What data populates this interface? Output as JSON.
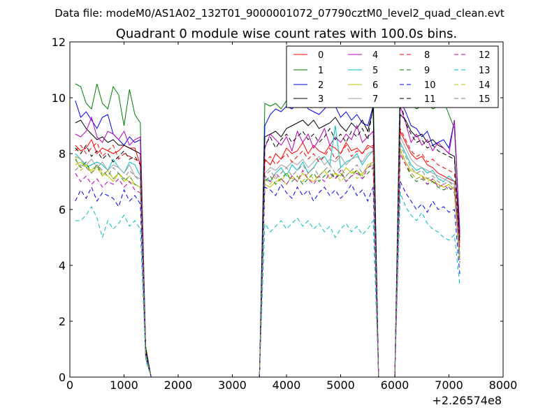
{
  "suptitle": "Data file: modeM0/AS1A02_132T01_9000001072_07790cztM0_level2_quad_clean.evt",
  "chart_data": {
    "type": "line",
    "title": "Quadrant 0 module wise count rates with 100.0s bins.",
    "xlabel": "",
    "ylabel": "",
    "x_offset_label": "+2.26574e8",
    "xlim": [
      0,
      8000
    ],
    "ylim": [
      0,
      12
    ],
    "xticks": [
      0,
      1000,
      2000,
      3000,
      4000,
      5000,
      6000,
      7000,
      8000
    ],
    "yticks": [
      0,
      2,
      4,
      6,
      8,
      10,
      12
    ],
    "legend_position": "top-right",
    "legend_columns": 4,
    "x": [
      100,
      200,
      300,
      400,
      500,
      600,
      700,
      800,
      900,
      1000,
      1100,
      1200,
      1300,
      1400,
      1500,
      1600,
      1700,
      1800,
      1900,
      2000,
      2100,
      2200,
      2300,
      2400,
      2500,
      2600,
      2700,
      2800,
      2900,
      3000,
      3100,
      3200,
      3300,
      3400,
      3500,
      3600,
      3700,
      3800,
      3900,
      4000,
      4100,
      4200,
      4300,
      4400,
      4500,
      4600,
      4700,
      4800,
      4900,
      5000,
      5100,
      5200,
      5300,
      5400,
      5500,
      5600,
      5700,
      5800,
      5900,
      6000,
      6100,
      6200,
      6300,
      6400,
      6500,
      6600,
      6700,
      6800,
      6900,
      7000,
      7100,
      7200
    ],
    "series": [
      {
        "name": "0",
        "color": "#ff0000",
        "dash": "solid",
        "values": [
          8.3,
          8.1,
          8.2,
          8.5,
          8.0,
          8.2,
          8.1,
          8.0,
          8.1,
          8.3,
          8.2,
          8.2,
          7.6,
          1.0,
          0,
          0,
          0,
          0,
          0,
          0,
          0,
          0,
          0,
          0,
          0,
          0,
          0,
          0,
          0,
          0,
          0,
          0,
          0,
          0,
          0,
          7.8,
          7.6,
          8.0,
          7.8,
          8.2,
          8.0,
          8.1,
          8.4,
          8.0,
          8.3,
          8.1,
          8.0,
          8.3,
          8.2,
          8.0,
          8.4,
          8.1,
          8.2,
          8.0,
          8.3,
          8.2,
          0,
          0,
          0,
          0,
          8.8,
          8.4,
          8.0,
          7.8,
          7.9,
          7.6,
          7.5,
          7.3,
          7.2,
          7.1,
          7.0,
          4.8
        ]
      },
      {
        "name": "1",
        "color": "#008000",
        "dash": "solid",
        "values": [
          10.5,
          10.4,
          9.8,
          9.6,
          10.5,
          9.8,
          9.6,
          10.4,
          10.1,
          9.0,
          10.3,
          9.4,
          9.1,
          1.1,
          0,
          0,
          0,
          0,
          0,
          0,
          0,
          0,
          0,
          0,
          0,
          0,
          0,
          0,
          0,
          0,
          0,
          0,
          0,
          0,
          0,
          9.8,
          9.7,
          9.8,
          9.6,
          9.9,
          10.0,
          10.2,
          10.3,
          10.1,
          10.4,
          10.5,
          10.2,
          10.3,
          10.6,
          10.4,
          10.7,
          10.5,
          10.8,
          10.3,
          10.6,
          10.5,
          0,
          0,
          0,
          0,
          11.0,
          10.4,
          9.8,
          9.6,
          9.7,
          9.8,
          9.6,
          9.7,
          9.9,
          9.4,
          8.9,
          5.3
        ]
      },
      {
        "name": "2",
        "color": "#0000ff",
        "dash": "solid",
        "values": [
          9.9,
          9.3,
          9.5,
          9.2,
          8.9,
          9.3,
          9.4,
          8.7,
          8.5,
          8.3,
          8.6,
          8.4,
          8.5,
          0.9,
          0,
          0,
          0,
          0,
          0,
          0,
          0,
          0,
          0,
          0,
          0,
          0,
          0,
          0,
          0,
          0,
          0,
          0,
          0,
          0,
          0,
          9.0,
          9.4,
          9.6,
          9.5,
          9.7,
          9.6,
          9.8,
          9.9,
          9.6,
          9.5,
          9.4,
          9.6,
          9.8,
          9.7,
          9.3,
          9.5,
          9.2,
          9.4,
          9.1,
          9.0,
          9.7,
          0,
          0,
          0,
          0,
          9.9,
          9.5,
          9.0,
          8.9,
          8.6,
          8.8,
          8.3,
          8.4,
          8.5,
          8.2,
          9.2,
          5.2
        ]
      },
      {
        "name": "3",
        "color": "#000000",
        "dash": "solid",
        "values": [
          9.1,
          9.2,
          8.9,
          8.7,
          8.5,
          8.6,
          8.4,
          8.5,
          8.3,
          8.3,
          8.2,
          8.1,
          8.0,
          1.0,
          0,
          0,
          0,
          0,
          0,
          0,
          0,
          0,
          0,
          0,
          0,
          0,
          0,
          0,
          0,
          0,
          0,
          0,
          0,
          0,
          0,
          8.6,
          8.7,
          8.8,
          8.6,
          8.9,
          9.0,
          9.1,
          9.2,
          9.0,
          9.2,
          8.9,
          9.0,
          9.1,
          9.3,
          9.0,
          8.8,
          9.1,
          8.9,
          9.2,
          8.8,
          9.6,
          0,
          0,
          0,
          0,
          9.4,
          9.2,
          8.8,
          8.6,
          8.7,
          8.4,
          8.5,
          8.3,
          8.2,
          8.0,
          7.9,
          5.0
        ]
      },
      {
        "name": "4",
        "color": "#bf00bf",
        "dash": "solid",
        "values": [
          8.7,
          8.6,
          8.8,
          9.3,
          8.6,
          8.4,
          8.8,
          8.7,
          8.5,
          8.8,
          8.3,
          8.5,
          8.6,
          0.9,
          0,
          0,
          0,
          0,
          0,
          0,
          0,
          0,
          0,
          0,
          0,
          0,
          0,
          0,
          0,
          0,
          0,
          0,
          0,
          0,
          0,
          8.2,
          8.7,
          8.5,
          8.3,
          8.6,
          8.1,
          8.8,
          8.4,
          8.7,
          8.2,
          8.5,
          8.9,
          8.3,
          8.6,
          8.4,
          8.7,
          8.5,
          9.0,
          8.4,
          8.6,
          8.8,
          0,
          0,
          0,
          0,
          9.7,
          9.1,
          8.4,
          8.7,
          8.3,
          8.5,
          8.1,
          8.4,
          8.2,
          8.0,
          9.2,
          5.1
        ]
      },
      {
        "name": "5",
        "color": "#00bfbf",
        "dash": "solid",
        "values": [
          8.0,
          7.8,
          7.5,
          7.6,
          7.7,
          7.6,
          7.4,
          7.8,
          7.5,
          7.3,
          7.7,
          7.6,
          7.2,
          0.8,
          0,
          0,
          0,
          0,
          0,
          0,
          0,
          0,
          0,
          0,
          0,
          0,
          0,
          0,
          0,
          0,
          0,
          0,
          0,
          0,
          0,
          7.1,
          7.0,
          7.3,
          7.5,
          7.2,
          7.6,
          7.4,
          7.7,
          7.3,
          7.5,
          7.8,
          7.9,
          7.6,
          9.0,
          7.5,
          7.7,
          7.8,
          8.0,
          7.6,
          7.9,
          8.1,
          0,
          0,
          0,
          0,
          8.4,
          8.0,
          7.6,
          7.4,
          7.5,
          7.3,
          7.4,
          7.1,
          7.0,
          7.2,
          7.0,
          4.4
        ]
      },
      {
        "name": "6",
        "color": "#bfbf00",
        "dash": "solid",
        "values": [
          7.6,
          7.7,
          7.5,
          7.4,
          7.6,
          7.3,
          7.2,
          7.0,
          7.3,
          7.1,
          7.0,
          6.9,
          6.8,
          0.8,
          0,
          0,
          0,
          0,
          0,
          0,
          0,
          0,
          0,
          0,
          0,
          0,
          0,
          0,
          0,
          0,
          0,
          0,
          0,
          0,
          0,
          6.9,
          6.8,
          7.0,
          7.1,
          6.9,
          7.2,
          7.0,
          7.3,
          7.1,
          7.0,
          7.2,
          7.4,
          7.1,
          7.3,
          7.2,
          7.5,
          7.3,
          7.4,
          7.2,
          7.6,
          7.7,
          0,
          0,
          0,
          0,
          8.1,
          7.7,
          7.4,
          7.3,
          7.2,
          7.1,
          7.0,
          6.9,
          6.8,
          6.9,
          6.7,
          4.2
        ]
      },
      {
        "name": "7",
        "color": "#a0a0a0",
        "dash": "solid",
        "values": [
          7.9,
          7.8,
          7.6,
          7.8,
          7.5,
          7.7,
          7.4,
          7.6,
          7.5,
          7.3,
          7.6,
          7.2,
          7.1,
          0.8,
          0,
          0,
          0,
          0,
          0,
          0,
          0,
          0,
          0,
          0,
          0,
          0,
          0,
          0,
          0,
          0,
          0,
          0,
          0,
          0,
          0,
          7.3,
          7.5,
          7.4,
          7.6,
          7.5,
          7.7,
          7.6,
          7.8,
          7.5,
          7.7,
          7.9,
          7.6,
          7.8,
          7.7,
          7.9,
          7.6,
          7.8,
          7.9,
          7.7,
          8.0,
          8.1,
          0,
          0,
          0,
          0,
          8.6,
          8.2,
          7.8,
          7.6,
          7.5,
          7.4,
          7.3,
          7.2,
          7.1,
          7.0,
          6.9,
          4.3
        ]
      },
      {
        "name": "8",
        "color": "#ff0000",
        "dash": "dashed",
        "values": [
          8.1,
          8.3,
          8.0,
          8.2,
          8.4,
          7.9,
          8.1,
          8.3,
          7.8,
          8.0,
          7.9,
          7.8,
          7.7,
          0.9,
          0,
          0,
          0,
          0,
          0,
          0,
          0,
          0,
          0,
          0,
          0,
          0,
          0,
          0,
          0,
          0,
          0,
          0,
          0,
          0,
          0,
          7.7,
          7.9,
          7.6,
          7.8,
          8.0,
          7.7,
          7.9,
          8.1,
          7.8,
          8.0,
          7.7,
          7.9,
          8.2,
          7.8,
          8.0,
          8.3,
          7.9,
          8.1,
          8.0,
          8.2,
          8.3,
          0,
          0,
          0,
          0,
          8.9,
          8.5,
          8.1,
          7.9,
          8.0,
          7.7,
          7.8,
          7.6,
          7.5,
          7.4,
          7.3,
          4.6
        ]
      },
      {
        "name": "9",
        "color": "#008000",
        "dash": "dashed",
        "values": [
          7.8,
          7.5,
          7.7,
          7.3,
          7.6,
          7.2,
          7.4,
          7.1,
          7.3,
          7.0,
          7.2,
          6.9,
          6.8,
          0.8,
          0,
          0,
          0,
          0,
          0,
          0,
          0,
          0,
          0,
          0,
          0,
          0,
          0,
          0,
          0,
          0,
          0,
          0,
          0,
          0,
          0,
          7.0,
          7.2,
          6.9,
          7.1,
          7.3,
          7.0,
          7.2,
          6.9,
          7.1,
          7.3,
          7.0,
          7.2,
          7.4,
          7.1,
          7.3,
          7.0,
          7.2,
          7.4,
          7.1,
          7.3,
          7.5,
          0,
          0,
          0,
          0,
          8.0,
          7.6,
          7.2,
          7.0,
          7.1,
          6.9,
          7.0,
          6.8,
          6.7,
          6.8,
          6.6,
          4.1
        ]
      },
      {
        "name": "10",
        "color": "#0000ff",
        "dash": "dashed",
        "values": [
          6.3,
          6.7,
          6.4,
          6.8,
          6.3,
          6.6,
          6.5,
          6.4,
          6.1,
          6.7,
          6.3,
          6.5,
          6.2,
          0.7,
          0,
          0,
          0,
          0,
          0,
          0,
          0,
          0,
          0,
          0,
          0,
          0,
          0,
          0,
          0,
          0,
          0,
          0,
          0,
          0,
          0,
          6.8,
          6.7,
          6.5,
          6.9,
          6.6,
          6.4,
          6.8,
          6.5,
          6.7,
          6.3,
          6.6,
          6.8,
          6.5,
          6.7,
          6.4,
          6.6,
          6.9,
          6.5,
          6.7,
          6.3,
          6.8,
          0,
          0,
          0,
          0,
          7.0,
          6.6,
          6.3,
          6.0,
          6.2,
          5.9,
          6.3,
          6.0,
          6.1,
          5.9,
          6.0,
          3.7
        ]
      },
      {
        "name": "11",
        "color": "#000000",
        "dash": "dashed",
        "values": [
          8.2,
          8.0,
          8.3,
          7.9,
          8.1,
          7.8,
          8.0,
          7.7,
          7.9,
          8.1,
          7.8,
          7.9,
          7.6,
          0.9,
          0,
          0,
          0,
          0,
          0,
          0,
          0,
          0,
          0,
          0,
          0,
          0,
          0,
          0,
          0,
          0,
          0,
          0,
          0,
          0,
          0,
          8.3,
          8.6,
          8.2,
          8.5,
          8.7,
          8.4,
          8.6,
          8.8,
          8.5,
          8.7,
          8.4,
          8.6,
          8.9,
          8.5,
          8.7,
          8.4,
          8.8,
          8.6,
          8.9,
          8.5,
          9.7,
          0,
          0,
          0,
          0,
          9.9,
          9.1,
          8.7,
          8.4,
          8.5,
          8.2,
          8.3,
          8.1,
          8.0,
          7.9,
          7.8,
          4.8
        ]
      },
      {
        "name": "12",
        "color": "#bf00bf",
        "dash": "dashed",
        "values": [
          7.3,
          7.0,
          7.2,
          6.9,
          7.1,
          6.8,
          7.0,
          6.9,
          7.1,
          6.8,
          7.0,
          6.7,
          6.6,
          0.8,
          0,
          0,
          0,
          0,
          0,
          0,
          0,
          0,
          0,
          0,
          0,
          0,
          0,
          0,
          0,
          0,
          0,
          0,
          0,
          0,
          0,
          7.2,
          7.0,
          7.3,
          7.1,
          6.9,
          7.2,
          7.0,
          7.4,
          7.1,
          6.9,
          7.2,
          7.0,
          7.3,
          7.1,
          7.4,
          7.0,
          7.2,
          7.3,
          7.1,
          7.5,
          7.6,
          0,
          0,
          0,
          0,
          8.0,
          7.6,
          7.3,
          7.1,
          7.2,
          6.9,
          7.1,
          6.8,
          6.9,
          6.7,
          6.8,
          4.2
        ]
      },
      {
        "name": "13",
        "color": "#00bfbf",
        "dash": "dashed",
        "values": [
          5.6,
          5.6,
          5.8,
          6.1,
          5.7,
          5.0,
          5.6,
          5.3,
          5.5,
          5.8,
          5.4,
          5.6,
          5.3,
          0.6,
          0,
          0,
          0,
          0,
          0,
          0,
          0,
          0,
          0,
          0,
          0,
          0,
          0,
          0,
          0,
          0,
          0,
          0,
          0,
          0,
          0,
          5.5,
          5.2,
          5.4,
          5.6,
          5.3,
          5.5,
          5.7,
          5.4,
          5.6,
          5.3,
          5.5,
          5.2,
          5.4,
          5.0,
          5.3,
          5.5,
          5.2,
          5.4,
          5.1,
          5.3,
          5.6,
          0,
          0,
          0,
          0,
          6.6,
          6.1,
          5.8,
          5.6,
          5.9,
          5.5,
          5.3,
          5.2,
          5.0,
          4.9,
          5.1,
          3.3
        ]
      },
      {
        "name": "14",
        "color": "#bfbf00",
        "dash": "dashed",
        "values": [
          7.9,
          7.4,
          7.6,
          7.3,
          7.5,
          7.2,
          7.4,
          7.1,
          7.3,
          7.0,
          7.2,
          6.9,
          6.8,
          0.8,
          0,
          0,
          0,
          0,
          0,
          0,
          0,
          0,
          0,
          0,
          0,
          0,
          0,
          0,
          0,
          0,
          0,
          0,
          0,
          0,
          0,
          7.1,
          6.9,
          7.2,
          7.0,
          7.3,
          7.1,
          7.2,
          7.0,
          7.3,
          7.1,
          7.2,
          7.4,
          7.1,
          7.3,
          7.0,
          7.2,
          7.4,
          7.1,
          7.3,
          7.5,
          7.6,
          0,
          0,
          0,
          0,
          8.2,
          7.7,
          7.3,
          7.1,
          7.2,
          7.0,
          7.1,
          6.9,
          6.8,
          6.9,
          6.7,
          4.2
        ]
      },
      {
        "name": "15",
        "color": "#808080",
        "dash": "dashed",
        "values": [
          7.4,
          7.6,
          7.5,
          7.3,
          7.6,
          7.4,
          7.2,
          7.5,
          7.3,
          7.1,
          7.4,
          7.2,
          7.0,
          0.8,
          0,
          0,
          0,
          0,
          0,
          0,
          0,
          0,
          0,
          0,
          0,
          0,
          0,
          0,
          0,
          0,
          0,
          0,
          0,
          0,
          0,
          7.2,
          7.4,
          7.1,
          7.3,
          7.5,
          7.2,
          7.4,
          7.6,
          7.3,
          7.5,
          7.2,
          7.4,
          7.6,
          7.3,
          7.5,
          7.2,
          7.4,
          7.6,
          7.3,
          7.5,
          7.7,
          0,
          0,
          0,
          0,
          8.3,
          7.9,
          7.5,
          7.3,
          7.4,
          7.1,
          7.2,
          7.0,
          6.9,
          7.0,
          6.8,
          4.3
        ]
      }
    ]
  }
}
